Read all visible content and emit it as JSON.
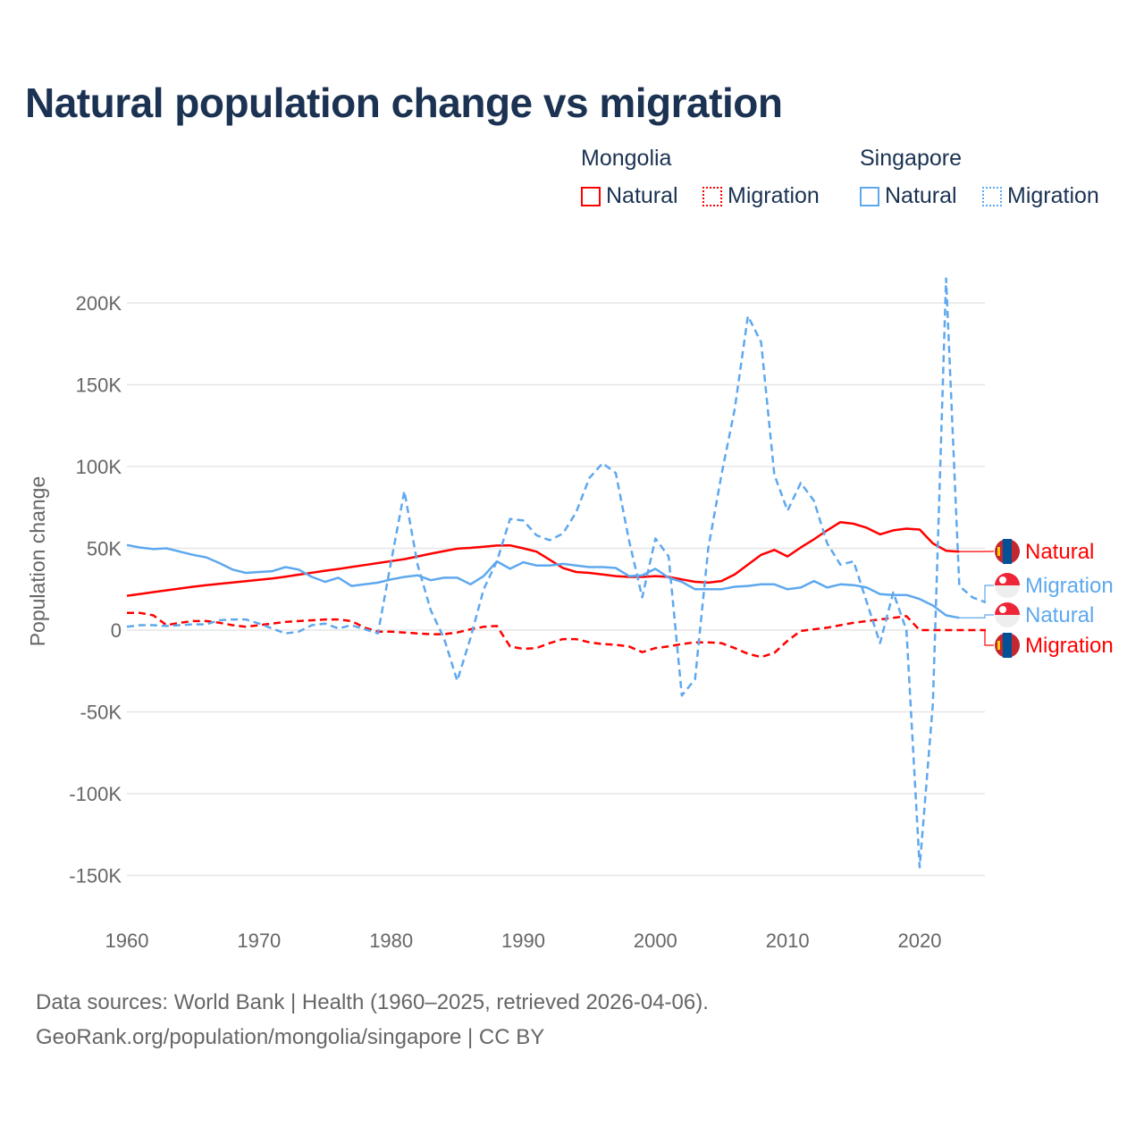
{
  "title": "Natural population change vs migration",
  "legend": {
    "groups": [
      {
        "name": "Mongolia",
        "items": [
          {
            "label": "Natural",
            "style": "solid",
            "color": "#ff0000"
          },
          {
            "label": "Migration",
            "style": "dotted",
            "color": "#ff0000"
          }
        ]
      },
      {
        "name": "Singapore",
        "items": [
          {
            "label": "Natural",
            "style": "solid",
            "color": "#5ea8ee"
          },
          {
            "label": "Migration",
            "style": "dotted",
            "color": "#5ea8ee"
          }
        ]
      }
    ]
  },
  "sources": [
    "Data sources: World Bank | Health (1960–2025, retrieved 2026-04-06).",
    "GeoRank.org/population/mongolia/singapore | CC BY"
  ],
  "chart_data": {
    "type": "line",
    "title": "Natural population change vs migration",
    "xlabel": "",
    "ylabel": "Population change",
    "xlim": [
      1960,
      2025
    ],
    "ylim": [
      -165000,
      215000
    ],
    "x_ticks": [
      1960,
      1970,
      1980,
      1990,
      2000,
      2010,
      2020
    ],
    "y_ticks": [
      {
        "v": 200000,
        "label": "200K"
      },
      {
        "v": 150000,
        "label": "150K"
      },
      {
        "v": 100000,
        "label": "100K"
      },
      {
        "v": 50000,
        "label": "50K"
      },
      {
        "v": 0,
        "label": "0"
      },
      {
        "v": -50000,
        "label": "-50K"
      },
      {
        "v": -100000,
        "label": "-100K"
      },
      {
        "v": -150000,
        "label": "-150K"
      }
    ],
    "grid": true,
    "x_start": 1960,
    "series": [
      {
        "name": "Mongolia Natural",
        "end_label": "Natural",
        "color": "#ff0000",
        "dash": false,
        "flag": "mongolia",
        "values": [
          21,
          22.1,
          23.2,
          24.3,
          25.4,
          26.5,
          27.5,
          28.3,
          29.1,
          29.9,
          30.7,
          31.6,
          32.7,
          33.9,
          35.1,
          36.3,
          37.4,
          38.6,
          39.8,
          41,
          42.2,
          43.4,
          45,
          46.7,
          48.3,
          49.8,
          50.3,
          51,
          51.7,
          51.8,
          50,
          48,
          43,
          38,
          35.5,
          35,
          34,
          33,
          32.5,
          32.5,
          33,
          32.5,
          31,
          29.5,
          29,
          30,
          34,
          40,
          46,
          49,
          45,
          50.5,
          55.5,
          61,
          66,
          65,
          62.5,
          58.5,
          61,
          62,
          61.5,
          53,
          48.5,
          48
        ]
      },
      {
        "name": "Singapore Migration",
        "end_label": "Migration",
        "color": "#5ea8ee",
        "dash": true,
        "flag": "singapore",
        "values": [
          2,
          3,
          3,
          2.5,
          3,
          3.5,
          3.5,
          6,
          6.5,
          6.5,
          4,
          1,
          -2,
          -1,
          3,
          4,
          1,
          3,
          0.5,
          -2,
          42,
          85,
          40,
          12,
          -5,
          -31,
          -5,
          25,
          42,
          68,
          67,
          58,
          55,
          59,
          72,
          93,
          102,
          96,
          55,
          20,
          56,
          45,
          -40,
          -30,
          50,
          95,
          135,
          192,
          176,
          95,
          73,
          90,
          79,
          53,
          40,
          42,
          17,
          -8,
          23,
          0,
          -145,
          -45,
          215,
          27,
          20,
          17
        ]
      },
      {
        "name": "Singapore Natural",
        "end_label": "Natural",
        "color": "#5ea8ee",
        "dash": false,
        "flag": "singapore",
        "values": [
          52,
          50.5,
          49.5,
          50,
          48,
          46,
          44.5,
          41,
          37,
          35,
          35.5,
          36,
          38.5,
          37,
          32.5,
          29.5,
          32,
          27,
          28,
          29,
          31,
          32.5,
          33.5,
          30.5,
          32,
          32,
          28,
          33,
          42,
          37.5,
          41.5,
          39.5,
          39.5,
          40.5,
          39.5,
          38.5,
          38.5,
          38,
          33,
          33.5,
          37.5,
          32,
          29.5,
          25,
          25,
          25,
          26.5,
          27,
          28,
          28,
          25,
          26,
          30,
          26,
          28,
          27.5,
          26,
          22,
          21.5,
          21.5,
          19,
          15,
          9,
          7.5
        ]
      },
      {
        "name": "Mongolia Migration",
        "end_label": "Migration",
        "color": "#ff0000",
        "dash": true,
        "flag": "mongolia",
        "values": [
          10.5,
          10.5,
          9,
          3,
          4.5,
          5.5,
          5.5,
          4.5,
          3,
          2,
          3,
          4,
          5,
          5.5,
          6,
          6.5,
          6.5,
          5.5,
          1.5,
          -1,
          -1,
          -1.5,
          -2,
          -2.5,
          -2.5,
          -1.5,
          0.5,
          2,
          2.5,
          -10,
          -11.5,
          -11,
          -8,
          -5.5,
          -5.5,
          -7.5,
          -8.5,
          -9,
          -10,
          -13.5,
          -11,
          -10,
          -8.5,
          -7.5,
          -7.5,
          -8,
          -11,
          -14.5,
          -16.5,
          -14,
          -6.5,
          -0.5,
          0.5,
          1.5,
          3,
          4.5,
          5.5,
          6.5,
          7.5,
          8.5,
          0,
          0,
          0,
          0,
          0,
          0
        ]
      }
    ],
    "value_unit": "thousands"
  }
}
